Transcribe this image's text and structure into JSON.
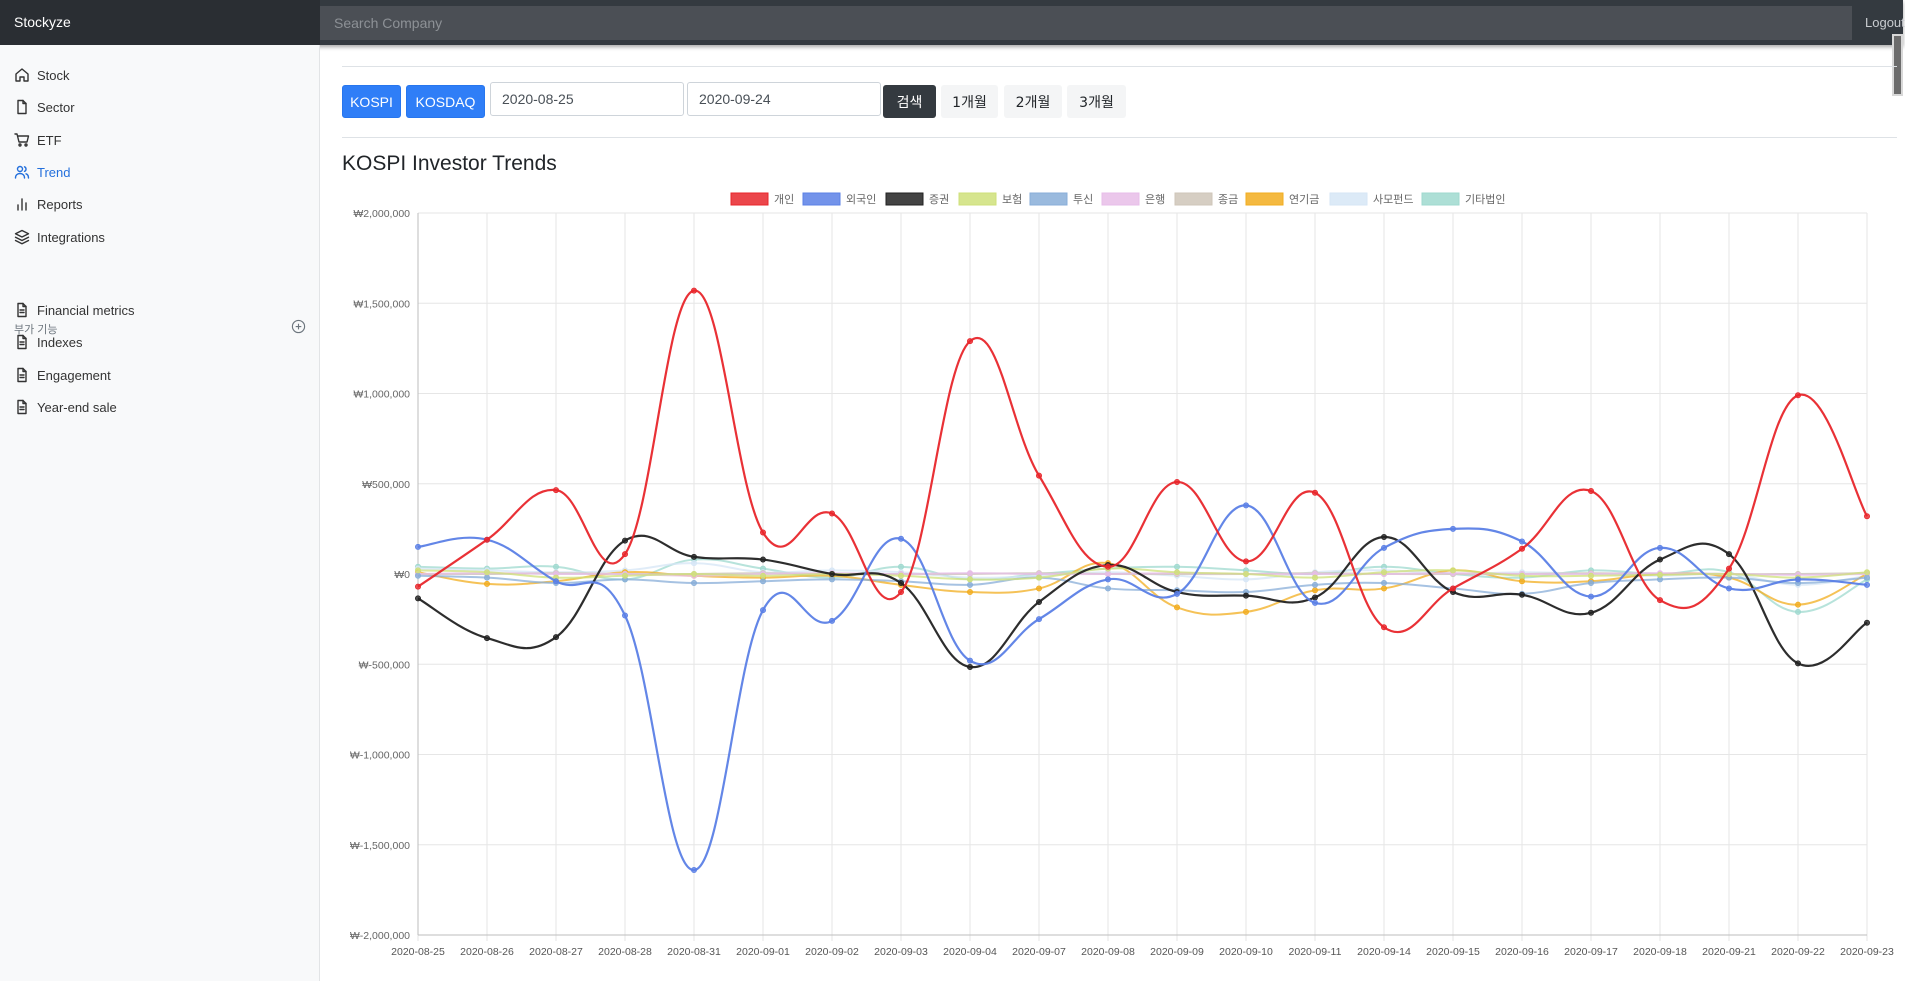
{
  "header": {
    "brand": "Stockyze",
    "search_placeholder": "Search Company",
    "logout_label": "Logout"
  },
  "sidebar": {
    "items": [
      {
        "label": "Stock",
        "icon": "home-icon",
        "active": false
      },
      {
        "label": "Sector",
        "icon": "file-icon",
        "active": false
      },
      {
        "label": "ETF",
        "icon": "cart-icon",
        "active": false
      },
      {
        "label": "Trend",
        "icon": "users-icon",
        "active": true
      },
      {
        "label": "Reports",
        "icon": "bar-chart-icon",
        "active": false
      },
      {
        "label": "Integrations",
        "icon": "layers-icon",
        "active": false
      }
    ],
    "section_title": "부가 기능",
    "section_items": [
      {
        "label": "Financial metrics",
        "icon": "file-text-icon"
      },
      {
        "label": "Indexes",
        "icon": "file-text-icon"
      },
      {
        "label": "Engagement",
        "icon": "file-text-icon"
      },
      {
        "label": "Year-end sale",
        "icon": "file-text-icon"
      }
    ]
  },
  "filters": {
    "market_buttons": [
      "KOSPI",
      "KOSDAQ"
    ],
    "start_date": "2020-08-25",
    "end_date": "2020-09-24",
    "search_label": "검색",
    "period_buttons": [
      "1개월",
      "2개월",
      "3개월"
    ]
  },
  "page_title": "KOSPI Investor Trends",
  "chart_data": {
    "type": "line",
    "x": [
      "2020-08-25",
      "2020-08-26",
      "2020-08-27",
      "2020-08-28",
      "2020-08-31",
      "2020-09-01",
      "2020-09-02",
      "2020-09-03",
      "2020-09-04",
      "2020-09-07",
      "2020-09-08",
      "2020-09-09",
      "2020-09-10",
      "2020-09-11",
      "2020-09-14",
      "2020-09-15",
      "2020-09-16",
      "2020-09-17",
      "2020-09-18",
      "2020-09-21",
      "2020-09-22",
      "2020-09-23"
    ],
    "ylim": [
      -2000000,
      2000000
    ],
    "yticks": [
      2000000,
      1500000,
      1000000,
      500000,
      0,
      -500000,
      -1000000,
      -1500000,
      -2000000
    ],
    "ytick_labels": [
      "₩2,000,000",
      "₩1,500,000",
      "₩1,000,000",
      "₩500,000",
      "₩0",
      "₩-500,000",
      "₩-1,000,000",
      "₩-1,500,000",
      "₩-2,000,000"
    ],
    "grid": true,
    "legend_position": "top",
    "series": [
      {
        "name": "개인",
        "color": "#e8262b",
        "values": [
          -70000,
          190000,
          465000,
          110000,
          1570000,
          230000,
          335000,
          -100000,
          1290000,
          545000,
          40000,
          510000,
          70000,
          450000,
          -295000,
          -80000,
          140000,
          460000,
          -145000,
          30000,
          990000,
          320000
        ]
      },
      {
        "name": "외국인",
        "color": "#5b80e6",
        "values": [
          150000,
          190000,
          -40000,
          -230000,
          -1640000,
          -200000,
          -260000,
          195000,
          -480000,
          -250000,
          -30000,
          -110000,
          380000,
          -160000,
          145000,
          250000,
          180000,
          -125000,
          145000,
          -80000,
          -30000,
          -60000
        ]
      },
      {
        "name": "증권",
        "color": "#222222",
        "values": [
          -135000,
          -355000,
          -350000,
          185000,
          95000,
          80000,
          0,
          -50000,
          -515000,
          -155000,
          50000,
          -100000,
          -120000,
          -130000,
          205000,
          -100000,
          -115000,
          -215000,
          80000,
          110000,
          -495000,
          -270000
        ]
      },
      {
        "name": "보험",
        "color": "#cfe07a",
        "values": [
          20000,
          10000,
          -20000,
          -10000,
          0,
          -10000,
          0,
          -10000,
          -30000,
          -20000,
          30000,
          10000,
          0,
          -20000,
          10000,
          20000,
          -10000,
          -10000,
          -5000,
          0,
          -20000,
          10000
        ]
      },
      {
        "name": "투신",
        "color": "#88aed8",
        "values": [
          -10000,
          -20000,
          -50000,
          -30000,
          -50000,
          -40000,
          -30000,
          -40000,
          -60000,
          -20000,
          -80000,
          -90000,
          -100000,
          -60000,
          -50000,
          -80000,
          -110000,
          -50000,
          -30000,
          -20000,
          -50000,
          -20000
        ]
      },
      {
        "name": "은행",
        "color": "#e7bde8",
        "values": [
          0,
          5000,
          0,
          0,
          -10000,
          0,
          5000,
          0,
          5000,
          0,
          0,
          5000,
          0,
          0,
          0,
          5000,
          0,
          0,
          5000,
          0,
          -5000,
          0
        ]
      },
      {
        "name": "종금",
        "color": "#cfc6b8",
        "values": [
          0,
          0,
          5000,
          0,
          0,
          5000,
          0,
          0,
          0,
          5000,
          0,
          0,
          0,
          5000,
          0,
          0,
          0,
          5000,
          0,
          0,
          0,
          5000
        ]
      },
      {
        "name": "연기금",
        "color": "#f2ad1f",
        "values": [
          10000,
          -55000,
          -40000,
          10000,
          -10000,
          -20000,
          -10000,
          -60000,
          -100000,
          -80000,
          60000,
          -185000,
          -210000,
          -90000,
          -80000,
          20000,
          -40000,
          -40000,
          0,
          -20000,
          -170000,
          0
        ]
      },
      {
        "name": "사모펀드",
        "color": "#d6e6f6",
        "values": [
          30000,
          20000,
          10000,
          20000,
          60000,
          10000,
          20000,
          10000,
          -20000,
          -10000,
          10000,
          -10000,
          -30000,
          10000,
          20000,
          0,
          10000,
          0,
          -10000,
          0,
          -60000,
          -10000
        ]
      },
      {
        "name": "기타법인",
        "color": "#9fd9cf",
        "values": [
          40000,
          30000,
          40000,
          -30000,
          80000,
          30000,
          -20000,
          40000,
          -30000,
          0,
          30000,
          40000,
          20000,
          0,
          40000,
          0,
          -20000,
          20000,
          0,
          10000,
          -210000,
          -30000
        ]
      }
    ]
  }
}
